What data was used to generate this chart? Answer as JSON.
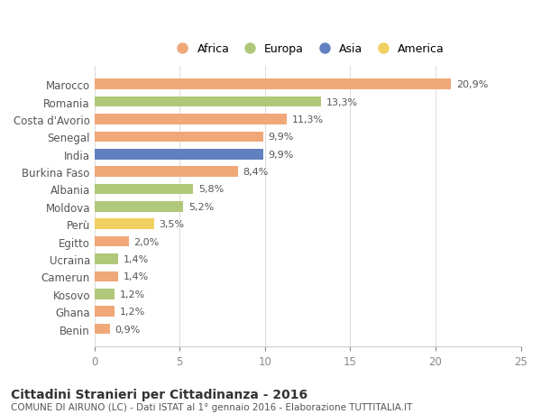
{
  "countries": [
    "Marocco",
    "Romania",
    "Costa d'Avorio",
    "Senegal",
    "India",
    "Burkina Faso",
    "Albania",
    "Moldova",
    "Perù",
    "Egitto",
    "Ucraina",
    "Camerun",
    "Kosovo",
    "Ghana",
    "Benin"
  ],
  "values": [
    20.9,
    13.3,
    11.3,
    9.9,
    9.9,
    8.4,
    5.8,
    5.2,
    3.5,
    2.0,
    1.4,
    1.4,
    1.2,
    1.2,
    0.9
  ],
  "labels": [
    "20,9%",
    "13,3%",
    "11,3%",
    "9,9%",
    "9,9%",
    "8,4%",
    "5,8%",
    "5,2%",
    "3,5%",
    "2,0%",
    "1,4%",
    "1,4%",
    "1,2%",
    "1,2%",
    "0,9%"
  ],
  "continents": [
    "Africa",
    "Europa",
    "Africa",
    "Africa",
    "Asia",
    "Africa",
    "Europa",
    "Europa",
    "America",
    "Africa",
    "Europa",
    "Africa",
    "Europa",
    "Africa",
    "Africa"
  ],
  "colors": {
    "Africa": "#F0A878",
    "Europa": "#B0C87A",
    "Asia": "#6080C0",
    "America": "#F0D060"
  },
  "legend_order": [
    "Africa",
    "Europa",
    "Asia",
    "America"
  ],
  "xlim": [
    0,
    25
  ],
  "xticks": [
    0,
    5,
    10,
    15,
    20,
    25
  ],
  "title": "Cittadini Stranieri per Cittadinanza - 2016",
  "subtitle": "COMUNE DI AIRUNO (LC) - Dati ISTAT al 1° gennaio 2016 - Elaborazione TUTTITALIA.IT",
  "background_color": "#ffffff",
  "bar_height": 0.6,
  "grid_color": "#dddddd"
}
